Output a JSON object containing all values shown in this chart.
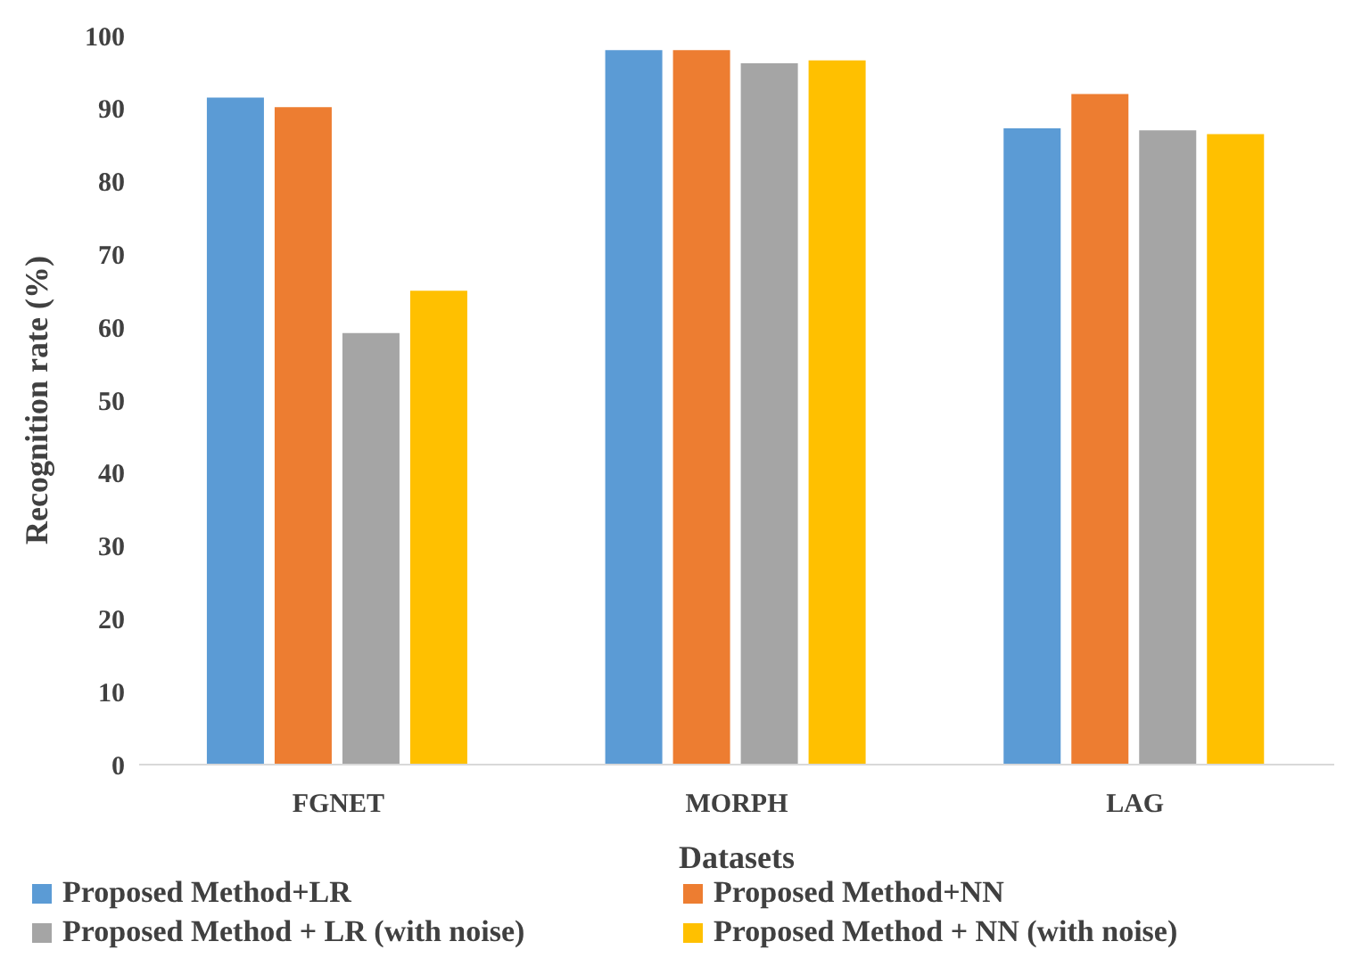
{
  "chart_data": {
    "type": "bar",
    "xlabel": "Datasets",
    "ylabel": "Recognition rate (%)",
    "categories": [
      "FGNET",
      "MORPH",
      "LAG"
    ],
    "series": [
      {
        "name": "Proposed Method+LR",
        "color": "#5b9bd5",
        "values": [
          91.5,
          98,
          87.3
        ]
      },
      {
        "name": "Proposed Method+NN",
        "color": "#ed7d31",
        "values": [
          90.2,
          98,
          92
        ]
      },
      {
        "name": "Proposed Method + LR (with noise)",
        "color": "#a5a5a5",
        "values": [
          59.2,
          96.2,
          87
        ]
      },
      {
        "name": "Proposed Method + NN (with noise)",
        "color": "#ffc000",
        "values": [
          65,
          96.6,
          86.5
        ]
      }
    ],
    "ylim": [
      0,
      100
    ],
    "yticks": [
      0,
      10,
      20,
      30,
      40,
      50,
      60,
      70,
      80,
      90,
      100
    ],
    "grid": false,
    "legend": "bottom"
  }
}
